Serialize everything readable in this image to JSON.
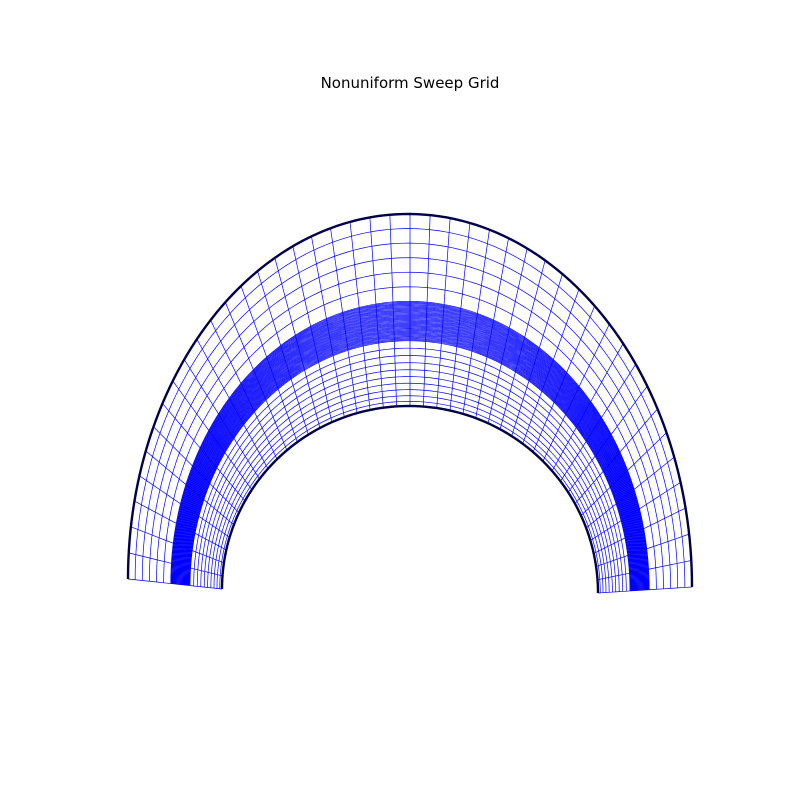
{
  "figure": {
    "title": "Nonuniform Sweep Grid"
  },
  "grid": {
    "type": "structured-sweep-mesh",
    "angular_lines": 44,
    "radial_layers": [
      {
        "name": "inner",
        "lines": 11
      },
      {
        "name": "clustered",
        "lines": 41
      },
      {
        "name": "outer",
        "lines": 7
      }
    ],
    "colors": {
      "grid": "#0000ff",
      "boundary": "#00004a",
      "background": "#ffffff"
    }
  }
}
